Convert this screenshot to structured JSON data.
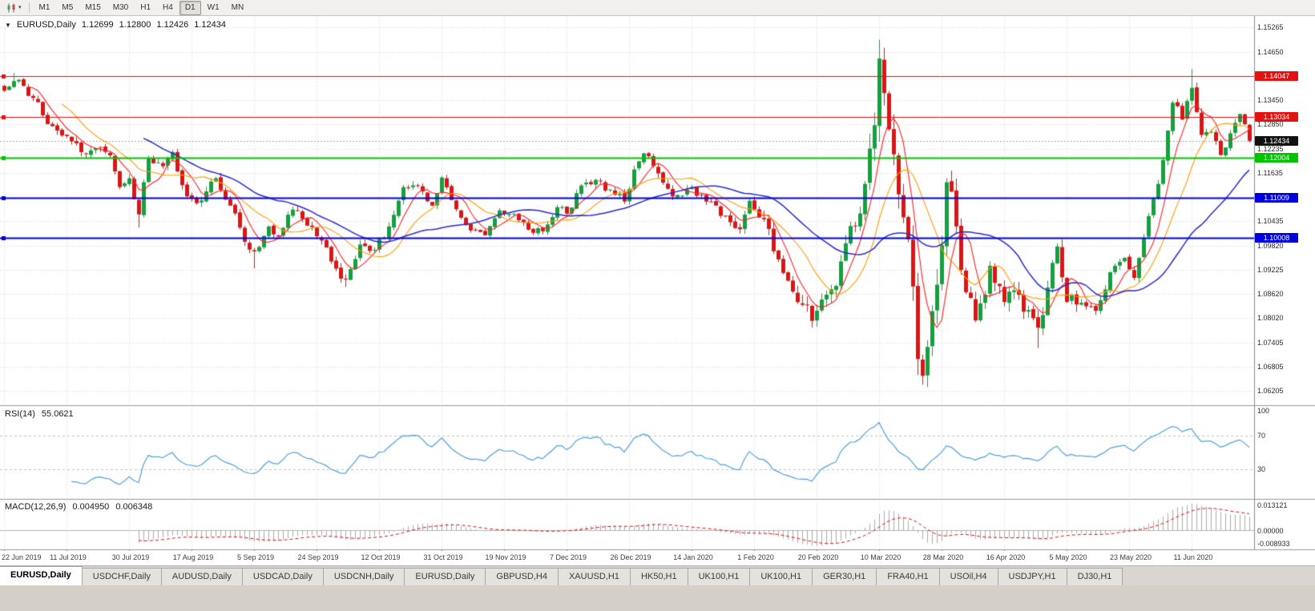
{
  "icons": {
    "dropdown_caret": "▾",
    "header_caret": "▼"
  },
  "toolbar": {
    "timeframes": [
      "M1",
      "M5",
      "M15",
      "M30",
      "H1",
      "H4",
      "D1",
      "W1",
      "MN"
    ],
    "selected_timeframe": "D1"
  },
  "chart_header": {
    "symbol": "EURUSD,Daily",
    "open": "1.12699",
    "high": "1.12800",
    "low": "1.12426",
    "close": "1.12434"
  },
  "price_axis": {
    "grid_labels": [
      "1.15265",
      "1.14650",
      "1.13450",
      "1.12850",
      "1.12235",
      "1.11635",
      "1.10435",
      "1.09820",
      "1.09225",
      "1.08620",
      "1.08020",
      "1.07405",
      "1.06805",
      "1.06205"
    ],
    "current_price": "1.12434",
    "current_price_bg": "#111111",
    "levels": [
      {
        "label": "1.14047",
        "price": 1.14047,
        "color": "#e31212",
        "width": 1
      },
      {
        "label": "1.13034",
        "price": 1.13034,
        "color": "#e31212",
        "width": 1
      },
      {
        "label": "1.12004",
        "price": 1.12004,
        "color": "#00c400",
        "width": 2
      },
      {
        "label": "1.11009",
        "price": 1.11009,
        "color": "#0000dd",
        "width": 2
      },
      {
        "label": "1.10008",
        "price": 1.10008,
        "color": "#0000dd",
        "width": 2
      }
    ]
  },
  "rsi_panel": {
    "name": "RSI(14)",
    "value": "55.0621",
    "line_color": "#4da0dd",
    "levels": [
      70,
      30
    ],
    "axis_labels": [
      {
        "v": 100,
        "text": "100"
      },
      {
        "v": 70,
        "text": "70"
      },
      {
        "v": 30,
        "text": "30"
      }
    ]
  },
  "macd_panel": {
    "name": "MACD(12,26,9)",
    "value_main": "0.004950",
    "value_signal": "0.006348",
    "axis_top": "0.013121",
    "axis_zero": "0.00000",
    "axis_bottom": "-0.008933",
    "hist_color": "#ababab",
    "signal_color": "#e31212"
  },
  "time_axis": {
    "labels": [
      "22 Jun 2019",
      "11 Jul 2019",
      "30 Jul 2019",
      "17 Aug 2019",
      "5 Sep 2019",
      "24 Sep 2019",
      "12 Oct 2019",
      "31 Oct 2019",
      "19 Nov 2019",
      "7 Dec 2019",
      "26 Dec 2019",
      "14 Jan 2020",
      "1 Feb 2020",
      "20 Feb 2020",
      "10 Mar 2020",
      "28 Mar 2020",
      "16 Apr 2020",
      "5 May 2020",
      "23 May 2020",
      "11 Jun 2020"
    ]
  },
  "tabs": {
    "active_index": 0,
    "items": [
      "EURUSD,Daily",
      "USDCHF,Daily",
      "AUDUSD,Daily",
      "USDCAD,Daily",
      "USDCNH,Daily",
      "EURUSD,Daily",
      "GBPUSD,H4",
      "XAUUSD,H1",
      "HK50,H1",
      "UK100,H1",
      "UK100,H1",
      "GER30,H1",
      "FRA40,H1",
      "USOil,H4",
      "USDJPY,H1",
      "DJ30,H1"
    ]
  },
  "colors": {
    "up": "#0fa33c",
    "down": "#e31212",
    "grid": "#d9d9d9",
    "bid_line": "#a8a8a8",
    "separator": "#9a9894",
    "axis_line": "#8a8a8a"
  },
  "chart_data": {
    "type": "candlestick",
    "symbol": "EURUSD",
    "timeframe": "D1",
    "visible_range": {
      "price_min": 1.0585,
      "price_max": 1.155
    },
    "num_candles": 260,
    "label_candle_interval": 13,
    "price_path": [
      [
        0,
        1.1368
      ],
      [
        2,
        1.1392
      ],
      [
        4,
        1.138
      ],
      [
        6,
        1.135
      ],
      [
        9,
        1.1285
      ],
      [
        13,
        1.1255
      ],
      [
        16,
        1.1215
      ],
      [
        19,
        1.1225
      ],
      [
        22,
        1.1207
      ],
      [
        24,
        1.1128
      ],
      [
        26,
        1.115
      ],
      [
        28,
        1.106
      ],
      [
        30,
        1.12
      ],
      [
        33,
        1.118
      ],
      [
        35,
        1.1215
      ],
      [
        38,
        1.1105
      ],
      [
        41,
        1.1095
      ],
      [
        44,
        1.115
      ],
      [
        47,
        1.1082
      ],
      [
        50,
        1.0992
      ],
      [
        52,
        1.0968
      ],
      [
        55,
        1.103
      ],
      [
        57,
        1.1005
      ],
      [
        60,
        1.1072
      ],
      [
        63,
        1.1032
      ],
      [
        66,
        1.0995
      ],
      [
        69,
        1.0925
      ],
      [
        71,
        1.0898
      ],
      [
        74,
        1.0985
      ],
      [
        77,
        1.0972
      ],
      [
        80,
        1.103
      ],
      [
        83,
        1.1128
      ],
      [
        86,
        1.1132
      ],
      [
        89,
        1.1082
      ],
      [
        91,
        1.1152
      ],
      [
        94,
        1.1073
      ],
      [
        97,
        1.102
      ],
      [
        100,
        1.1008
      ],
      [
        103,
        1.107
      ],
      [
        106,
        1.1062
      ],
      [
        109,
        1.1022
      ],
      [
        112,
        1.1018
      ],
      [
        115,
        1.1078
      ],
      [
        117,
        1.1062
      ],
      [
        120,
        1.1132
      ],
      [
        123,
        1.1146
      ],
      [
        126,
        1.1122
      ],
      [
        129,
        1.1092
      ],
      [
        131,
        1.1172
      ],
      [
        133,
        1.1212
      ],
      [
        136,
        1.1162
      ],
      [
        139,
        1.1105
      ],
      [
        143,
        1.1128
      ],
      [
        146,
        1.1092
      ],
      [
        150,
        1.1056
      ],
      [
        153,
        1.1023
      ],
      [
        155,
        1.1094
      ],
      [
        158,
        1.1048
      ],
      [
        161,
        1.0948
      ],
      [
        164,
        1.0868
      ],
      [
        166,
        1.0835
      ],
      [
        168,
        1.0795
      ],
      [
        170,
        1.0848
      ],
      [
        173,
        1.0882
      ],
      [
        175,
        1.0988
      ],
      [
        177,
        1.1032
      ],
      [
        179,
        1.1136
      ],
      [
        181,
        1.1282
      ],
      [
        182,
        1.1448
      ],
      [
        183,
        1.1362
      ],
      [
        184,
        1.1272
      ],
      [
        186,
        1.111
      ],
      [
        188,
        1.0998
      ],
      [
        190,
        1.07
      ],
      [
        191,
        1.0658
      ],
      [
        192,
        1.073
      ],
      [
        194,
        1.0885
      ],
      [
        196,
        1.114
      ],
      [
        198,
        1.103
      ],
      [
        199,
        1.0922
      ],
      [
        201,
        1.0852
      ],
      [
        202,
        1.0796
      ],
      [
        204,
        1.086
      ],
      [
        205,
        1.0932
      ],
      [
        208,
        1.0842
      ],
      [
        211,
        1.086
      ],
      [
        213,
        1.0822
      ],
      [
        215,
        1.0778
      ],
      [
        217,
        1.0878
      ],
      [
        219,
        1.098
      ],
      [
        221,
        1.0842
      ],
      [
        224,
        1.084
      ],
      [
        227,
        1.082
      ],
      [
        230,
        1.0916
      ],
      [
        233,
        1.0952
      ],
      [
        235,
        1.0902
      ],
      [
        237,
        1.1002
      ],
      [
        240,
        1.1136
      ],
      [
        243,
        1.1338
      ],
      [
        245,
        1.1296
      ],
      [
        247,
        1.1375
      ],
      [
        249,
        1.1258
      ],
      [
        251,
        1.1266
      ],
      [
        253,
        1.1208
      ],
      [
        255,
        1.1262
      ],
      [
        257,
        1.131
      ],
      [
        259,
        1.12434
      ]
    ],
    "wick_overrides": [
      [
        2,
        "high",
        1.1412
      ],
      [
        28,
        "low",
        1.1027
      ],
      [
        52,
        "low",
        1.0926
      ],
      [
        71,
        "low",
        1.0879
      ],
      [
        168,
        "low",
        1.0778
      ],
      [
        182,
        "high",
        1.1495
      ],
      [
        191,
        "low",
        1.0636
      ],
      [
        215,
        "low",
        1.0727
      ],
      [
        247,
        "high",
        1.1422
      ]
    ],
    "moving_averages": [
      {
        "period": 6,
        "color": "#ff2020",
        "width": 1.1
      },
      {
        "period": 13,
        "color": "#ff9c00",
        "width": 1.1
      },
      {
        "period": 30,
        "color": "#2a2ad0",
        "width": 1.5
      }
    ],
    "indicators": {
      "rsi_period": 14,
      "macd": [
        12,
        26,
        9
      ]
    }
  }
}
